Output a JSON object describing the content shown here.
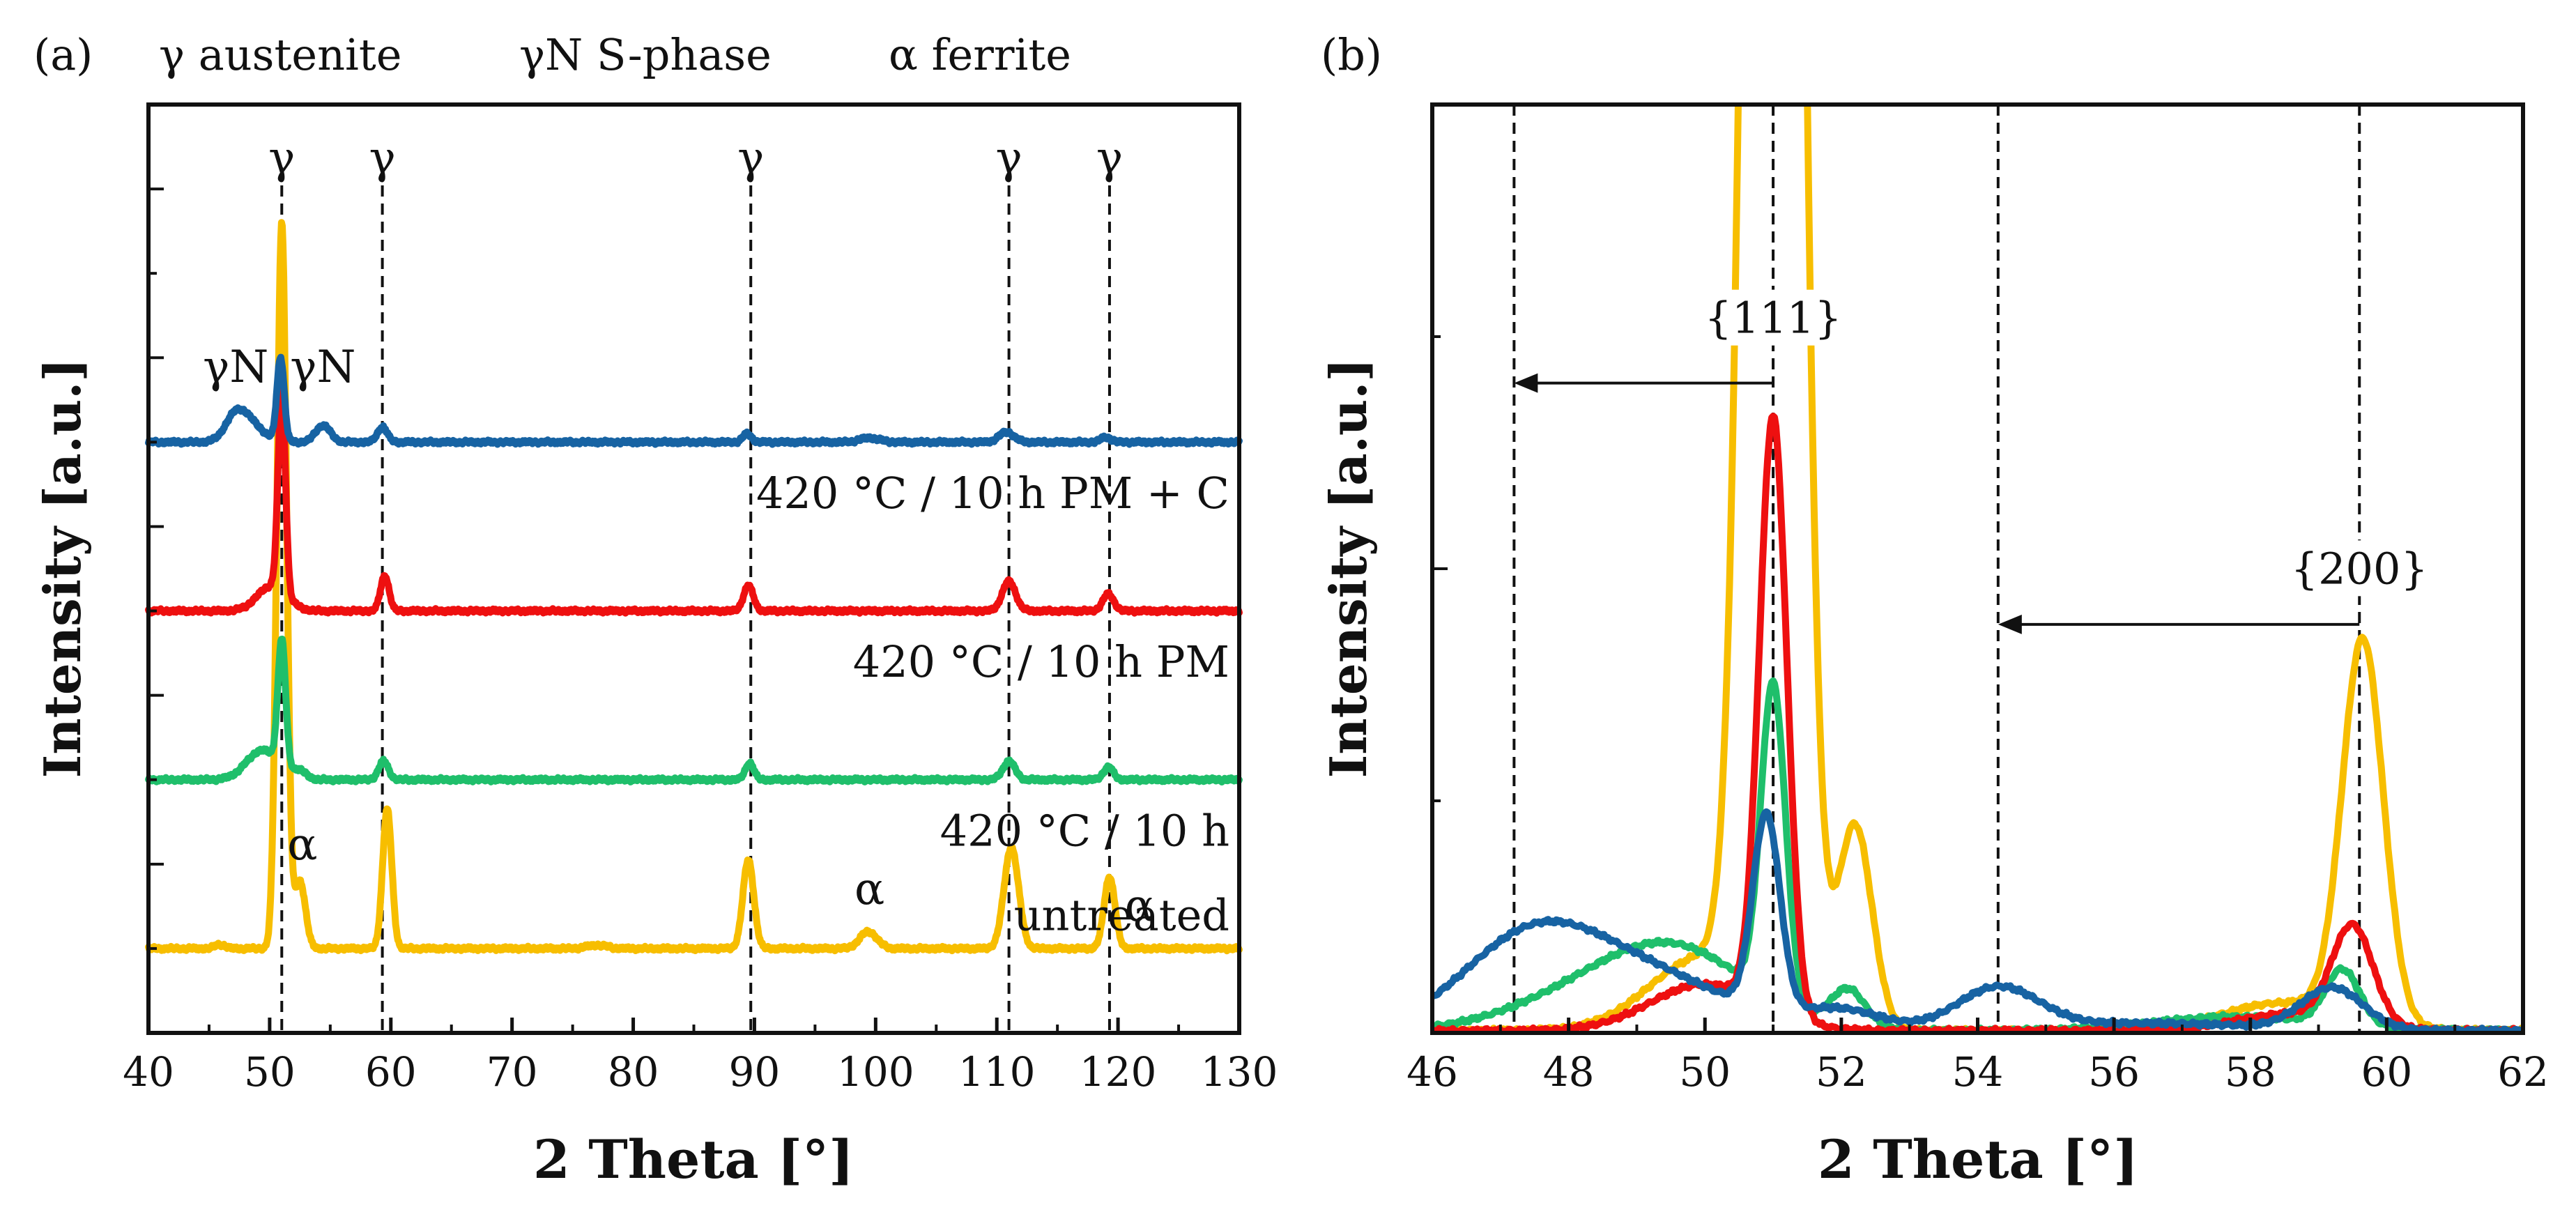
{
  "colors": {
    "untreated": "#F7BE00",
    "plain": "#1FBF6B",
    "pm": "#EE1010",
    "pmc": "#1763A3"
  },
  "chart_data": [
    {
      "type": "line",
      "panel_label": "(a)",
      "legend_top": [
        "γ austenite",
        "γN S-phase",
        "α ferrite"
      ],
      "xlabel": "2 Theta [°]",
      "ylabel": "Intensity [a.u.]",
      "xlim": [
        40,
        130
      ],
      "xticks": [
        40,
        50,
        60,
        70,
        80,
        90,
        100,
        110,
        120,
        130
      ],
      "ylim": [
        0,
        11
      ],
      "reference_lines": [
        51.0,
        59.3,
        89.7,
        111.0,
        119.3
      ],
      "gamma_labels": [
        "γ",
        "γ",
        "γ",
        "γ",
        "γ"
      ],
      "gammaN_labels": [
        {
          "x": 47.2,
          "text": "γN"
        },
        {
          "x": 54.4,
          "text": "γN"
        }
      ],
      "alpha_labels": [
        {
          "x": 52.7,
          "text": "α"
        },
        {
          "x": 99.5,
          "text": "α"
        },
        {
          "x": 121.8,
          "text": "α"
        }
      ],
      "series": [
        {
          "name": "untreated",
          "color_key": "untreated",
          "baseline": 1.0,
          "peaks": [
            [
              51.0,
              8.6,
              0.4
            ],
            [
              52.5,
              0.8,
              0.45
            ],
            [
              59.7,
              1.65,
              0.38
            ],
            [
              89.5,
              1.05,
              0.45
            ],
            [
              99.4,
              0.2,
              0.7
            ],
            [
              111.2,
              1.2,
              0.6
            ],
            [
              119.3,
              0.85,
              0.45
            ],
            [
              45.9,
              0.05,
              0.4
            ],
            [
              77.0,
              0.04,
              0.8
            ]
          ]
        },
        {
          "name": "420 °C / 10 h",
          "color_key": "plain",
          "baseline": 3.0,
          "peaks": [
            [
              49.4,
              0.35,
              1.3
            ],
            [
              51.0,
              1.5,
              0.32
            ],
            [
              52.4,
              0.1,
              0.6
            ],
            [
              59.4,
              0.22,
              0.4
            ],
            [
              89.6,
              0.2,
              0.35
            ],
            [
              111.0,
              0.22,
              0.5
            ],
            [
              119.2,
              0.15,
              0.4
            ]
          ]
        },
        {
          "name": "420 °C / 10 h PM",
          "color_key": "pm",
          "baseline": 5.0,
          "peaks": [
            [
              50.2,
              0.3,
              1.2
            ],
            [
              51.0,
              2.4,
              0.3
            ],
            [
              59.5,
              0.42,
              0.35
            ],
            [
              89.5,
              0.3,
              0.4
            ],
            [
              111.0,
              0.35,
              0.55
            ],
            [
              119.2,
              0.2,
              0.45
            ]
          ]
        },
        {
          "name": "420 °C / 10 h PM + C",
          "color_key": "pmc",
          "baseline": 7.0,
          "peaks": [
            [
              47.3,
              0.35,
              0.9
            ],
            [
              48.8,
              0.15,
              0.9
            ],
            [
              50.9,
              1.0,
              0.3
            ],
            [
              54.4,
              0.2,
              0.6
            ],
            [
              59.3,
              0.18,
              0.4
            ],
            [
              89.4,
              0.1,
              0.35
            ],
            [
              99.5,
              0.05,
              0.8
            ],
            [
              110.8,
              0.12,
              0.6
            ],
            [
              119.0,
              0.06,
              0.4
            ]
          ]
        }
      ],
      "series_labels": [
        {
          "series": "420 °C / 10 h PM + C",
          "text": "420 °C / 10 h PM + C"
        },
        {
          "series": "420 °C / 10 h PM",
          "text": "420 °C / 10 h PM"
        },
        {
          "series": "420 °C / 10 h",
          "text": "420 °C / 10 h"
        },
        {
          "series": "untreated",
          "text": "untreated"
        }
      ]
    },
    {
      "type": "line",
      "panel_label": "(b)",
      "xlabel": "2 Theta [°]",
      "ylabel": "Intensity [a.u.]",
      "xlim": [
        46,
        62
      ],
      "xticks": [
        46,
        48,
        50,
        52,
        54,
        56,
        58,
        60,
        62
      ],
      "ylim": [
        0,
        100
      ],
      "reference_lines": [
        47.2,
        51.0,
        54.3,
        59.6
      ],
      "annotations": [
        {
          "text": "{111}",
          "x": 51.0,
          "y": 76,
          "arrow_from": 51.0,
          "arrow_to": 47.2,
          "arrow_y": 70
        },
        {
          "text": "{200}",
          "x": 59.6,
          "y": 49,
          "arrow_from": 59.6,
          "arrow_to": 54.3,
          "arrow_y": 44
        }
      ],
      "series": [
        {
          "name": "untreated",
          "color_key": "untreated",
          "peaks": [
            [
              51.0,
              400,
              0.3
            ],
            [
              50.0,
              8,
              0.8
            ],
            [
              52.2,
              22,
              0.25
            ],
            [
              59.65,
              41,
              0.3
            ],
            [
              58.5,
              3,
              0.9
            ]
          ]
        },
        {
          "name": "420 °C / 10 h",
          "color_key": "plain",
          "peaks": [
            [
              51.0,
              34,
              0.18
            ],
            [
              49.5,
              9,
              1.1
            ],
            [
              47.8,
              2,
              1.0
            ],
            [
              52.1,
              4,
              0.25
            ],
            [
              59.35,
              6,
              0.25
            ],
            [
              57.8,
              1.5,
              1.2
            ]
          ]
        },
        {
          "name": "420 °C / 10 h PM",
          "color_key": "pm",
          "peaks": [
            [
              51.0,
              64,
              0.2
            ],
            [
              50.0,
              5,
              0.8
            ],
            [
              59.5,
              10.5,
              0.3
            ],
            [
              58.6,
              1.8,
              0.8
            ]
          ]
        },
        {
          "name": "420 °C / 10 h PM + C",
          "color_key": "pmc",
          "peaks": [
            [
              50.9,
              21,
              0.2
            ],
            [
              47.4,
              8.5,
              1.0
            ],
            [
              49.0,
              6,
              1.3
            ],
            [
              54.3,
              4.5,
              0.6
            ],
            [
              52.0,
              2,
              0.6
            ],
            [
              59.2,
              4.5,
              0.45
            ],
            [
              56.5,
              0.8,
              1.5
            ]
          ]
        }
      ]
    }
  ]
}
